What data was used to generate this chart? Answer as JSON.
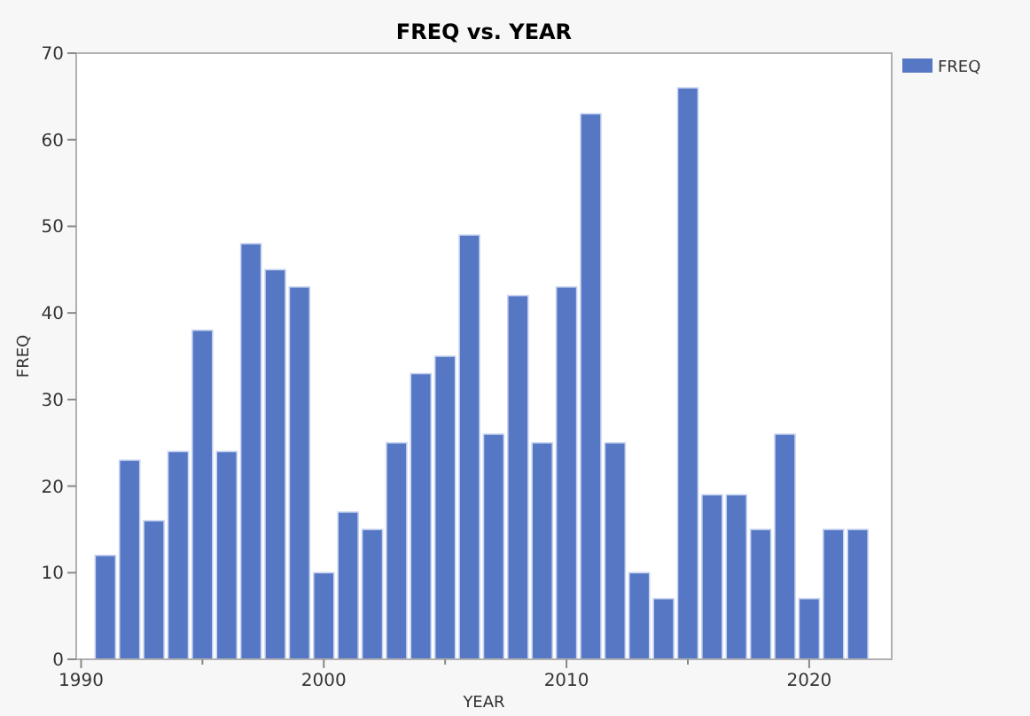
{
  "chart_data": {
    "type": "bar",
    "title": "FREQ vs. YEAR",
    "xlabel": "YEAR",
    "ylabel": "FREQ",
    "x": [
      1991,
      1992,
      1993,
      1994,
      1995,
      1996,
      1997,
      1998,
      1999,
      2000,
      2001,
      2002,
      2003,
      2004,
      2005,
      2006,
      2007,
      2008,
      2009,
      2010,
      2011,
      2012,
      2013,
      2014,
      2015,
      2016,
      2017,
      2018,
      2019,
      2020,
      2021,
      2022
    ],
    "series": [
      {
        "name": "FREQ",
        "color": "#5577c4",
        "values": [
          12,
          23,
          16,
          24,
          38,
          24,
          48,
          45,
          43,
          10,
          17,
          15,
          25,
          33,
          35,
          49,
          26,
          42,
          25,
          43,
          63,
          25,
          10,
          7,
          66,
          19,
          19,
          15,
          26,
          7,
          15,
          15
        ]
      }
    ],
    "xlim": [
      1989.8,
      2023.4
    ],
    "xticks": [
      1990,
      {
        "value": 1995,
        "label": null
      },
      2000,
      {
        "value": 2005,
        "label": null
      },
      2010,
      {
        "value": 2015,
        "label": null
      },
      2020
    ],
    "ylim": [
      0,
      70
    ],
    "yticks": [
      0,
      10,
      20,
      30,
      40,
      50,
      60,
      70
    ],
    "legend": "top right",
    "grid": false
  }
}
